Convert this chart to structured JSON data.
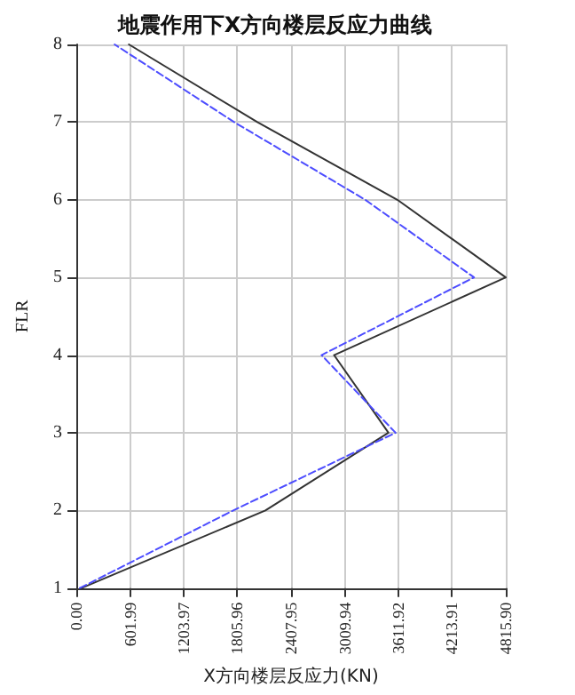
{
  "chart_data": {
    "type": "line",
    "title": "地震作用下X方向楼层反应力曲线",
    "xlabel": "X方向楼层反应力(KN)",
    "ylabel": "FLR",
    "series": [
      {
        "color": "#333333",
        "line_style": "solid",
        "x": [
          60,
          2120,
          3500,
          2890,
          4815.9,
          3600,
          2030,
          590
        ],
        "values": [
          1,
          2,
          3,
          4,
          5,
          6,
          7,
          8
        ]
      },
      {
        "color": "#4d4dff",
        "line_style": "dashed",
        "x": [
          40,
          1760,
          3580,
          2750,
          4460,
          3240,
          1770,
          430
        ],
        "values": [
          1,
          2,
          3,
          4,
          5,
          6,
          7,
          8
        ]
      }
    ],
    "xlim": [
      0,
      4815.9
    ],
    "xticks": [
      {
        "value": 0,
        "label": "0.00"
      },
      {
        "value": 601.99,
        "label": "601.99"
      },
      {
        "value": 1203.97,
        "label": "1203.97"
      },
      {
        "value": 1805.96,
        "label": "1805.96"
      },
      {
        "value": 2407.95,
        "label": "2407.95"
      },
      {
        "value": 3009.94,
        "label": "3009.94"
      },
      {
        "value": 3611.92,
        "label": "3611.92"
      },
      {
        "value": 4213.91,
        "label": "4213.91"
      },
      {
        "value": 4815.9,
        "label": "4815.90"
      }
    ],
    "ylim": [
      1,
      8
    ],
    "yticks": [
      1,
      2,
      3,
      4,
      5,
      6,
      7,
      8
    ],
    "grid": true,
    "marker": "none"
  }
}
